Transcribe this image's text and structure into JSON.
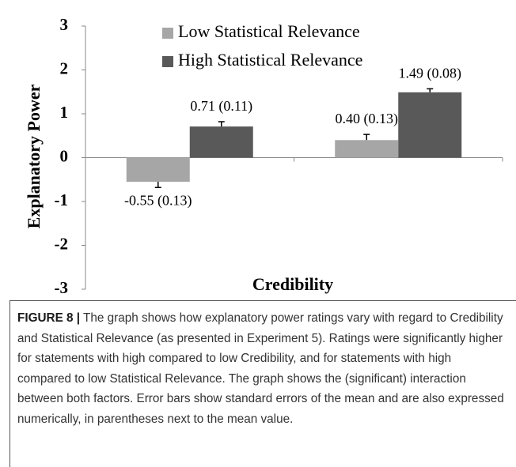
{
  "chart_data": {
    "type": "bar",
    "y_label": "Explanatory Power",
    "x_label": "Credibility",
    "categories": [
      null,
      null
    ],
    "series": [
      {
        "name": "Low Statistical Relevance",
        "color": "#a6a6a6",
        "values": [
          -0.55,
          0.4
        ],
        "errors": [
          0.13,
          0.13
        ],
        "value_labels": [
          "-0.55 (0.13)",
          "0.40 (0.13)"
        ]
      },
      {
        "name": "High Statistical Relevance",
        "color": "#595959",
        "values": [
          0.71,
          1.49
        ],
        "errors": [
          0.11,
          0.08
        ],
        "value_labels": [
          "0.71 (0.11)",
          "1.49 (0.08)"
        ]
      }
    ],
    "ylim": [
      -3,
      3
    ],
    "yticks": [
      -3,
      -2,
      -1,
      0,
      1,
      2,
      3
    ],
    "grid": false,
    "legend": "top"
  },
  "caption": {
    "label": "FIGURE 8 |",
    "text": " The graph shows how explanatory power ratings vary with regard to Credibility and Statistical Relevance (as presented in Experiment 5). Ratings were significantly higher for statements with high compared to low Credibility, and for statements with high compared to low Statistical Relevance. The graph shows the (significant) interaction between both factors. Error bars show standard errors of the mean and are also expressed numerically, in parentheses next to the mean value."
  }
}
